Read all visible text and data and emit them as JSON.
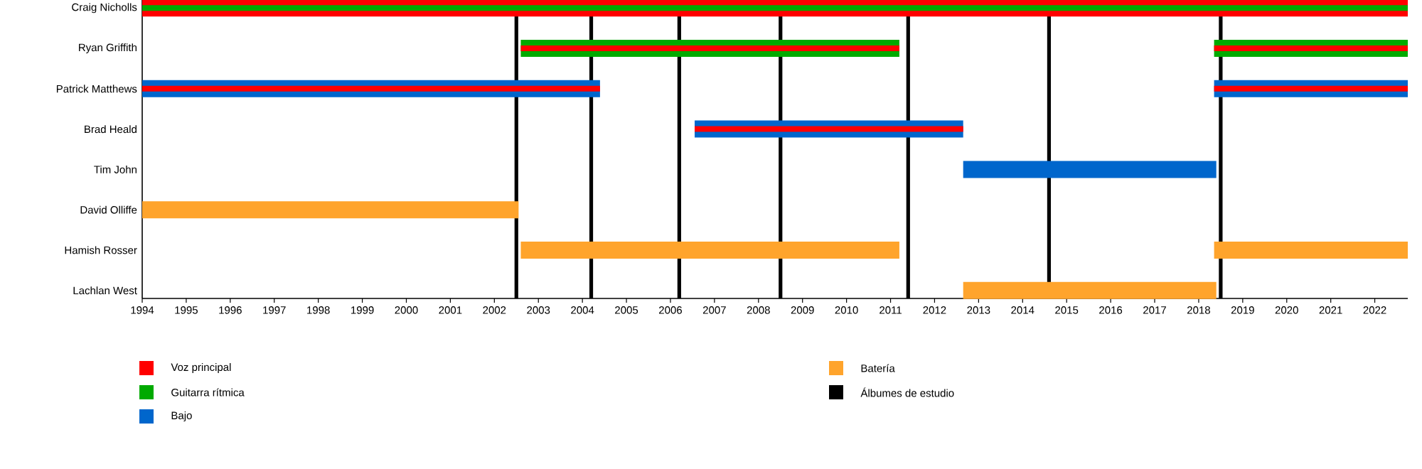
{
  "chart_data": {
    "type": "bar",
    "orientation": "horizontal",
    "legend": "bottom",
    "categories": [
      "Craig Nicholls",
      "Ryan Griffith",
      "Patrick Matthews",
      "Brad Heald",
      "Tim John",
      "David Olliffe",
      "Hamish Rosser",
      "Lachlan West"
    ],
    "xlim": [
      1994,
      2022.75
    ],
    "xticks": [
      1994,
      1995,
      1996,
      1997,
      1998,
      1999,
      2000,
      2001,
      2002,
      2003,
      2004,
      2005,
      2006,
      2007,
      2008,
      2009,
      2010,
      2011,
      2012,
      2013,
      2014,
      2015,
      2016,
      2017,
      2018,
      2019,
      2020,
      2021,
      2022
    ],
    "series": [
      {
        "name": "Voz principal",
        "color": "#ff0000",
        "base": [
          1994,
          null,
          null,
          null,
          null,
          null,
          null,
          null
        ],
        "values": [
          28.75,
          null,
          null,
          null,
          null,
          null,
          null,
          null
        ]
      },
      {
        "name": "Guitarra rítmica",
        "color": "#00aa00",
        "base": [
          1994,
          2002.6,
          null,
          null,
          null,
          null,
          null,
          null
        ],
        "values": [
          28.75,
          8.6,
          null,
          null,
          null,
          null,
          null,
          null
        ]
      },
      {
        "name": "Bajo",
        "color": "#0066cc",
        "base": [
          null,
          null,
          1994,
          2006.55,
          2012.65,
          null,
          null,
          null
        ],
        "values": [
          null,
          null,
          10.4,
          6.1,
          5.75,
          null,
          null,
          null
        ]
      },
      {
        "name": "Batería",
        "color": "#ffa42c",
        "base": [
          null,
          null,
          null,
          null,
          null,
          1994,
          2002.6,
          2012.65
        ],
        "values": [
          null,
          null,
          null,
          null,
          null,
          8.55,
          8.6,
          5.75
        ]
      },
      {
        "color": "#ff0000",
        "base": [
          null,
          2002.6,
          1994,
          2006.55,
          null,
          null,
          null,
          null
        ],
        "values": [
          null,
          8.6,
          10.4,
          6.1,
          null,
          null,
          null,
          null
        ]
      },
      {
        "colors": [
          null,
          "#00aa00",
          "#0066cc",
          null,
          null,
          null,
          "#ffa42c",
          null
        ],
        "base": [
          null,
          2018.35,
          2018.35,
          null,
          null,
          null,
          2018.35,
          null
        ],
        "values": [
          null,
          4.4,
          4.4,
          null,
          null,
          null,
          4.4,
          null
        ]
      },
      {
        "color": "#ff0000",
        "base": [
          null,
          2018.35,
          2018.35,
          null,
          null,
          null,
          null,
          null
        ],
        "values": [
          null,
          4.4,
          4.4,
          null,
          null,
          null,
          null,
          null
        ]
      }
    ],
    "ref_lines": [
      {
        "axis": "x",
        "value": 2002.5,
        "color": "#000000",
        "label": "Álbumes de estudio"
      },
      {
        "axis": "x",
        "value": 2004.2,
        "color": "#000000"
      },
      {
        "axis": "x",
        "value": 2006.2,
        "color": "#000000"
      },
      {
        "axis": "x",
        "value": 2008.5,
        "color": "#000000"
      },
      {
        "axis": "x",
        "value": 2011.4,
        "color": "#000000"
      },
      {
        "axis": "x",
        "value": 2014.6,
        "color": "#000000"
      },
      {
        "axis": "x",
        "value": 2018.5,
        "color": "#000000"
      }
    ]
  }
}
